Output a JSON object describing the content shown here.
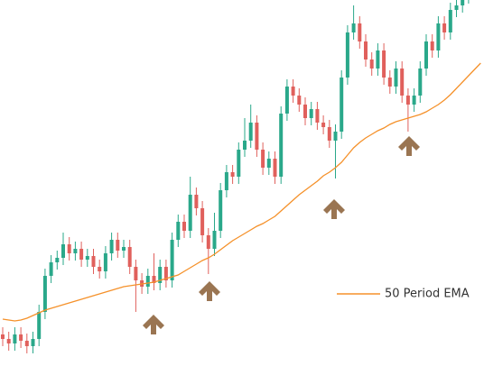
{
  "chart_data": {
    "type": "candlestick",
    "up_color": "#2aa88a",
    "down_color": "#e0605c",
    "ylim": [
      0,
      406
    ],
    "open": [
      35,
      30,
      25,
      35,
      28,
      22,
      30,
      60,
      100,
      115,
      120,
      135,
      125,
      130,
      118,
      122,
      110,
      105,
      125,
      140,
      128,
      132,
      110,
      95,
      88,
      100,
      92,
      110,
      95,
      140,
      160,
      150,
      190,
      175,
      145,
      130,
      150,
      195,
      215,
      210,
      240,
      250,
      270,
      240,
      220,
      230,
      210,
      280,
      310,
      300,
      290,
      275,
      285,
      270,
      265,
      250,
      260,
      320,
      370,
      380,
      360,
      340,
      330,
      350,
      320,
      310,
      330,
      300,
      290,
      300,
      330,
      360,
      350,
      380,
      370,
      395,
      400,
      410,
      420,
      415
    ],
    "high": [
      43,
      38,
      43,
      43,
      36,
      38,
      68,
      108,
      123,
      128,
      148,
      143,
      138,
      138,
      130,
      130,
      118,
      133,
      148,
      148,
      140,
      140,
      118,
      103,
      108,
      125,
      118,
      118,
      148,
      168,
      168,
      210,
      198,
      183,
      153,
      170,
      203,
      223,
      223,
      248,
      275,
      290,
      278,
      248,
      238,
      238,
      288,
      318,
      318,
      308,
      298,
      293,
      293,
      278,
      273,
      268,
      328,
      378,
      400,
      388,
      368,
      348,
      358,
      358,
      328,
      338,
      338,
      308,
      308,
      338,
      368,
      368,
      388,
      388,
      403,
      408,
      418,
      428,
      428,
      428
    ],
    "low": [
      22,
      17,
      17,
      20,
      14,
      14,
      22,
      52,
      92,
      107,
      112,
      117,
      117,
      110,
      110,
      102,
      97,
      97,
      117,
      120,
      120,
      102,
      60,
      80,
      80,
      84,
      84,
      87,
      87,
      132,
      142,
      142,
      167,
      137,
      102,
      122,
      142,
      187,
      202,
      202,
      232,
      242,
      232,
      212,
      212,
      202,
      202,
      272,
      292,
      282,
      267,
      267,
      262,
      257,
      242,
      208,
      252,
      312,
      362,
      352,
      332,
      322,
      322,
      312,
      302,
      302,
      292,
      260,
      282,
      292,
      322,
      342,
      342,
      362,
      362,
      387,
      392,
      402,
      407,
      407
    ],
    "close": [
      30,
      25,
      35,
      28,
      22,
      30,
      60,
      100,
      115,
      120,
      135,
      125,
      130,
      118,
      122,
      110,
      105,
      125,
      140,
      128,
      132,
      110,
      95,
      88,
      100,
      92,
      110,
      95,
      140,
      160,
      150,
      190,
      175,
      145,
      130,
      150,
      195,
      215,
      210,
      240,
      250,
      270,
      240,
      220,
      230,
      210,
      280,
      310,
      300,
      290,
      275,
      285,
      270,
      265,
      250,
      260,
      320,
      370,
      380,
      360,
      340,
      330,
      350,
      320,
      310,
      330,
      300,
      290,
      300,
      330,
      360,
      350,
      380,
      370,
      395,
      400,
      410,
      420,
      415,
      420
    ],
    "series": [
      {
        "name": "50 Period EMA",
        "color": "#f5912a",
        "values": [
          52,
          51,
          50,
          51,
          53,
          56,
          59,
          62,
          64,
          66,
          68,
          70,
          72,
          74,
          76,
          78,
          80,
          82,
          84,
          86,
          88,
          89,
          90,
          91,
          92,
          93,
          95,
          97,
          99,
          101,
          105,
          109,
          113,
          117,
          120,
          124,
          129,
          134,
          139,
          143,
          147,
          151,
          155,
          158,
          162,
          166,
          172,
          178,
          184,
          190,
          195,
          200,
          205,
          211,
          215,
          220,
          226,
          234,
          242,
          248,
          253,
          257,
          261,
          264,
          268,
          271,
          273,
          275,
          277,
          279,
          282,
          286,
          290,
          295,
          301,
          308,
          315,
          322,
          329,
          336
        ]
      }
    ]
  }
}
